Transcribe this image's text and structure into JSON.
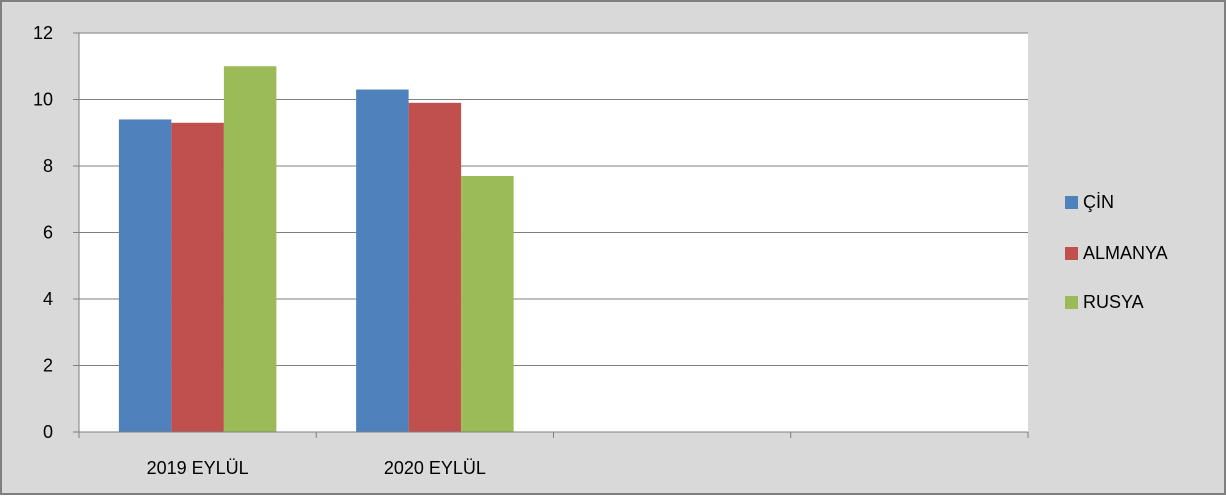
{
  "chart_data": {
    "type": "bar",
    "categories": [
      "2019 EYLÜL",
      "2020 EYLÜL",
      "",
      ""
    ],
    "series": [
      {
        "name": "ÇİN",
        "values": [
          9.4,
          10.3,
          null,
          null
        ],
        "color": "#4f81bd"
      },
      {
        "name": "ALMANYA",
        "values": [
          9.3,
          9.9,
          null,
          null
        ],
        "color": "#c0504d"
      },
      {
        "name": "RUSYA",
        "values": [
          11.0,
          7.7,
          null,
          null
        ],
        "color": "#9bbb59"
      }
    ],
    "ylim": [
      0,
      12
    ],
    "yticks": [
      "0",
      "2",
      "4",
      "6",
      "8",
      "10",
      "12"
    ],
    "grid": true,
    "legend_position": "right",
    "title": "",
    "xlabel": "",
    "ylabel": ""
  }
}
